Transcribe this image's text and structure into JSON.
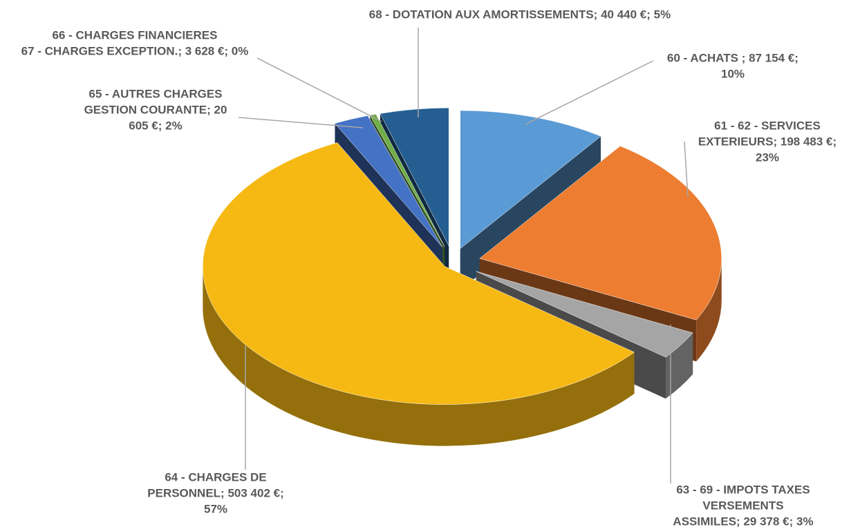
{
  "chart_data": {
    "type": "pie",
    "categories": [
      "60 - ACHATS",
      "61 - 62 - SERVICES EXTERIEURS",
      "63 - 69 - IMPOTS TAXES VERSEMENTS ASSIMILES",
      "64 - CHARGES DE PERSONNEL",
      "65 - AUTRES CHARGES GESTION COURANTE",
      "66 - CHARGES FINANCIERES 67 - CHARGES EXCEPTION.",
      "68 - DOTATION AUX AMORTISSEMENTS"
    ],
    "values": [
      87154,
      198483,
      29378,
      503402,
      20605,
      3628,
      40440
    ],
    "labels": [
      [
        "60 - ACHATS ; 87 154 €;",
        "10%"
      ],
      [
        "61 - 62 - SERVICES",
        "EXTERIEURS; 198 483 €;",
        "23%"
      ],
      [
        "63 - 69 - IMPOTS TAXES",
        "VERSEMENTS",
        "ASSIMILES; 29 378 €; 3%"
      ],
      [
        "64 - CHARGES DE",
        "PERSONNEL; 503 402 €;",
        "57%"
      ],
      [
        "65 - AUTRES CHARGES",
        "GESTION COURANTE; 20",
        "605 €; 2%"
      ],
      [
        "66 -  CHARGES FINANCIERES",
        "67 - CHARGES EXCEPTION.; 3 628 €; 0%"
      ],
      [
        "68 - DOTATION AUX AMORTISSEMENTS; 40 440 €; 5%"
      ]
    ],
    "colors": [
      "#5b9bd5",
      "#ed7d31",
      "#a5a5a5",
      "#f6b913",
      "#4472c4",
      "#70ad47",
      "#255e91"
    ]
  }
}
